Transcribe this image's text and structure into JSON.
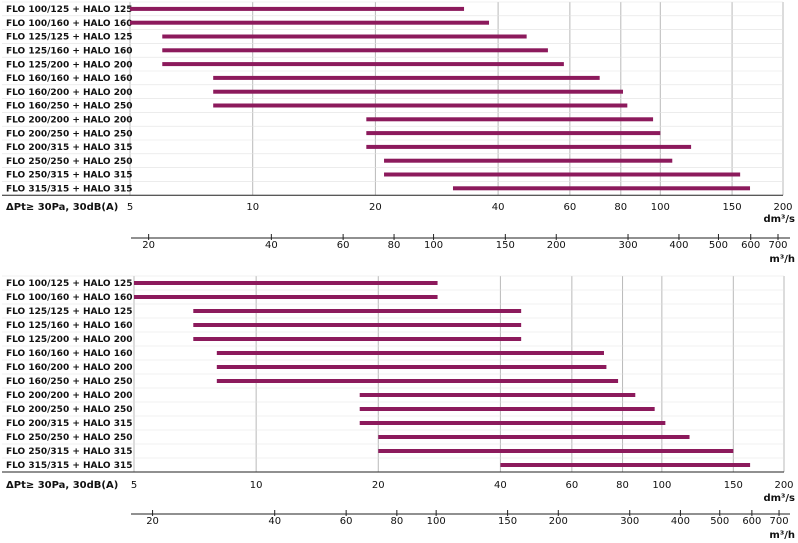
{
  "chart_data": [
    {
      "type": "bar",
      "orientation": "horizontal-range",
      "scale": "log",
      "grid": true,
      "condition": "ΔPt≥ 30Pa, 30dB(A)",
      "x_unit": "dm³/s",
      "x2_unit": "m³/h",
      "xlim": [
        5,
        200
      ],
      "x_ticks": [
        5,
        10,
        20,
        40,
        60,
        80,
        100,
        150,
        200
      ],
      "x_tick_labels": [
        "5",
        "10",
        "20",
        "40",
        "60",
        "80",
        "100",
        "150",
        "200"
      ],
      "x2_ticks": [
        20,
        40,
        60,
        80,
        100,
        150,
        200,
        300,
        400,
        500,
        600,
        700
      ],
      "x2_tick_labels": [
        "20",
        "40",
        "60",
        "80",
        "100",
        "150",
        "200",
        "300",
        "400",
        "500",
        "600",
        "700"
      ],
      "series": [
        {
          "label": "FLO 100/125 + HALO 125",
          "from": 5,
          "to": 33
        },
        {
          "label": "FLO 100/160 + HALO 160",
          "from": 5,
          "to": 38
        },
        {
          "label": "FLO 125/125 + HALO 125",
          "from": 6,
          "to": 47
        },
        {
          "label": "FLO 125/160 + HALO 160",
          "from": 6,
          "to": 53
        },
        {
          "label": "FLO 125/200 + HALO 200",
          "from": 6,
          "to": 58
        },
        {
          "label": "FLO 160/160 + HALO 160",
          "from": 8,
          "to": 71
        },
        {
          "label": "FLO 160/200 + HALO 200",
          "from": 8,
          "to": 81
        },
        {
          "label": "FLO 160/250 + HALO 250",
          "from": 8,
          "to": 83
        },
        {
          "label": "FLO 200/200 + HALO 200",
          "from": 19,
          "to": 96
        },
        {
          "label": "FLO 200/250 + HALO 250",
          "from": 19,
          "to": 100
        },
        {
          "label": "FLO 200/315 + HALO 315",
          "from": 19,
          "to": 119
        },
        {
          "label": "FLO 250/250 + HALO 250",
          "from": 21,
          "to": 107
        },
        {
          "label": "FLO 250/315 + HALO 315",
          "from": 21,
          "to": 157
        },
        {
          "label": "FLO 315/315 + HALO 315",
          "from": 31,
          "to": 166
        }
      ]
    },
    {
      "type": "bar",
      "orientation": "horizontal-range",
      "scale": "log",
      "grid": true,
      "condition": "ΔPt≥ 30Pa, 30dB(A)",
      "x_unit": "dm³/s",
      "x2_unit": "m³/h",
      "xlim": [
        5,
        200
      ],
      "x_ticks": [
        5,
        10,
        20,
        40,
        60,
        80,
        100,
        150,
        200
      ],
      "x_tick_labels": [
        "5",
        "10",
        "20",
        "40",
        "60",
        "80",
        "100",
        "150",
        "200"
      ],
      "x2_ticks": [
        20,
        40,
        60,
        80,
        100,
        150,
        200,
        300,
        400,
        500,
        600,
        700
      ],
      "x2_tick_labels": [
        "20",
        "40",
        "60",
        "80",
        "100",
        "150",
        "200",
        "300",
        "400",
        "500",
        "600",
        "700"
      ],
      "series": [
        {
          "label": "FLO 100/125 + HALO 125",
          "from": 5,
          "to": 28
        },
        {
          "label": "FLO 100/160 + HALO 160",
          "from": 5,
          "to": 28
        },
        {
          "label": "FLO 125/125 + HALO 125",
          "from": 7,
          "to": 45
        },
        {
          "label": "FLO 125/160 + HALO 160",
          "from": 7,
          "to": 45
        },
        {
          "label": "FLO 125/200 + HALO 200",
          "from": 7,
          "to": 45
        },
        {
          "label": "FLO 160/160 + HALO 160",
          "from": 8,
          "to": 72
        },
        {
          "label": "FLO 160/200 + HALO 200",
          "from": 8,
          "to": 73
        },
        {
          "label": "FLO 160/250 + HALO 250",
          "from": 8,
          "to": 78
        },
        {
          "label": "FLO 200/200 + HALO 200",
          "from": 18,
          "to": 86
        },
        {
          "label": "FLO 200/250 + HALO 250",
          "from": 18,
          "to": 96
        },
        {
          "label": "FLO 200/315 + HALO 315",
          "from": 18,
          "to": 102
        },
        {
          "label": "FLO 250/250 + HALO 250",
          "from": 20,
          "to": 117
        },
        {
          "label": "FLO 250/315 + HALO 315",
          "from": 20,
          "to": 150
        },
        {
          "label": "FLO 315/315 + HALO 315",
          "from": 40,
          "to": 165
        }
      ]
    }
  ],
  "colors": {
    "bar": "#8c1a5c",
    "grid": "#b9b9b9",
    "axis": "#222222"
  }
}
